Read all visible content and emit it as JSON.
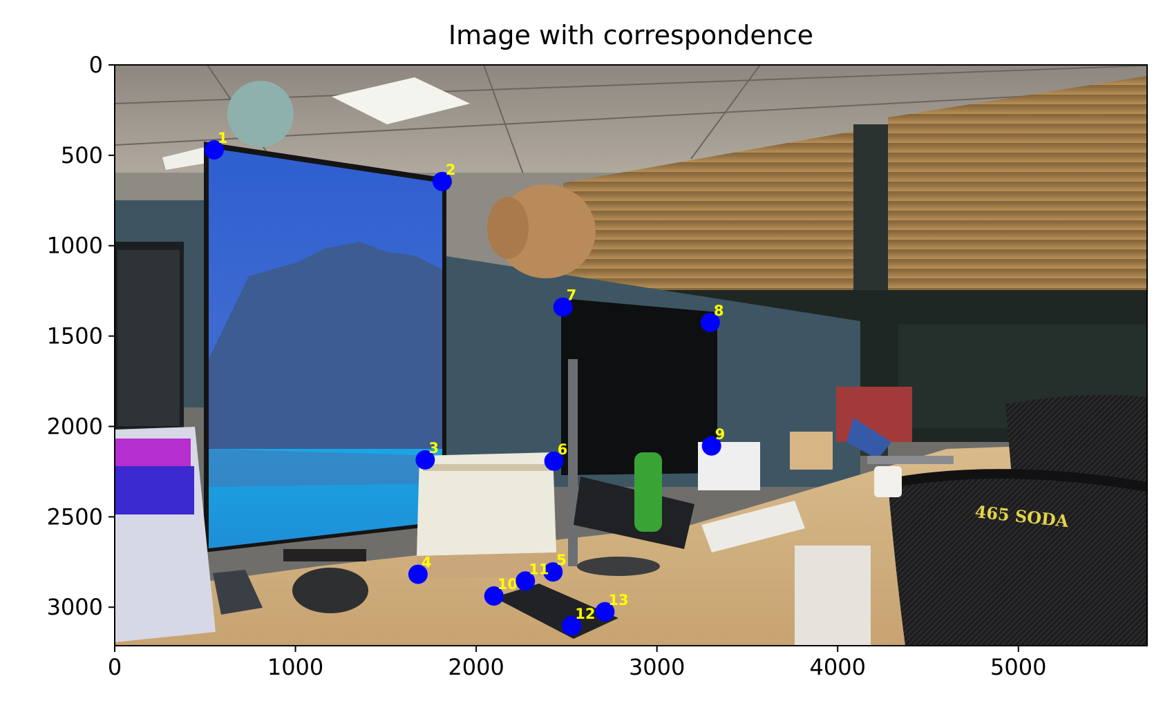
{
  "chart_data": {
    "type": "scatter",
    "title": "Image with correspondence",
    "xlabel": "",
    "ylabel": "",
    "xlim": [
      0,
      5712
    ],
    "ylim": [
      3213,
      0
    ],
    "x_ticks": [
      0,
      1000,
      2000,
      3000,
      4000,
      5000
    ],
    "y_ticks": [
      0,
      500,
      1000,
      1500,
      2000,
      2500,
      3000
    ],
    "x_tick_labels": [
      "0",
      "1000",
      "2000",
      "3000",
      "4000",
      "5000"
    ],
    "y_tick_labels": [
      "0",
      "500",
      "1000",
      "1500",
      "2000",
      "2500",
      "3000"
    ],
    "grid": false,
    "marker_color": "#0000ff",
    "label_color": "#ffff00",
    "background_image": "photo of an office desk with a vertical monitor, desk calendar, second monitor, plush toy on partition, chairs with 465 SODA text",
    "points": [
      {
        "label": "1",
        "x": 550,
        "y": 470
      },
      {
        "label": "2",
        "x": 1812,
        "y": 645
      },
      {
        "label": "3",
        "x": 1718,
        "y": 2185
      },
      {
        "label": "4",
        "x": 1678,
        "y": 2818
      },
      {
        "label": "5",
        "x": 2425,
        "y": 2805
      },
      {
        "label": "6",
        "x": 2430,
        "y": 2192
      },
      {
        "label": "7",
        "x": 2480,
        "y": 1340
      },
      {
        "label": "8",
        "x": 3295,
        "y": 1425
      },
      {
        "label": "9",
        "x": 3302,
        "y": 2108
      },
      {
        "label": "10",
        "x": 2098,
        "y": 2938
      },
      {
        "label": "11",
        "x": 2272,
        "y": 2855
      },
      {
        "label": "12",
        "x": 2528,
        "y": 3103
      },
      {
        "label": "13",
        "x": 2712,
        "y": 3025
      }
    ]
  }
}
